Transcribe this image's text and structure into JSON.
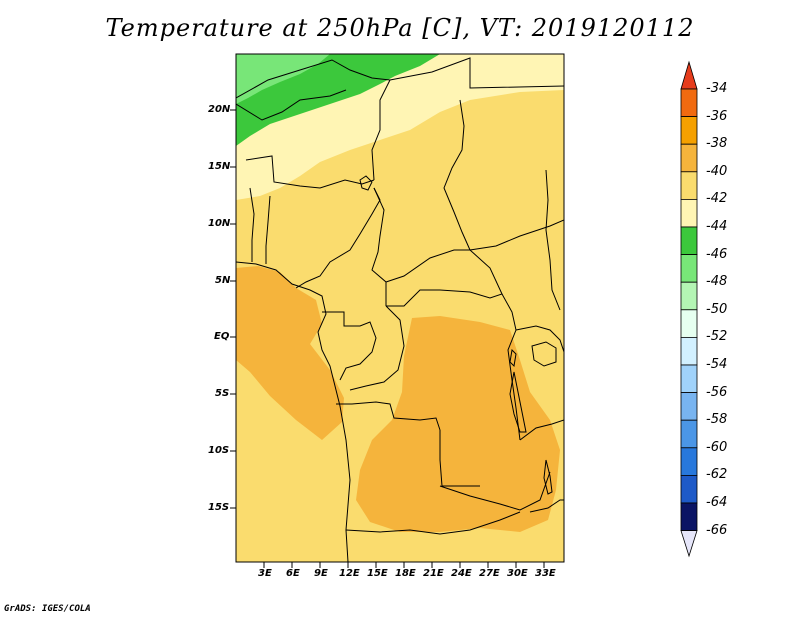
{
  "title": "Temperature at 250hPa [C], VT: 2019120112",
  "footer": "GrADS: IGES/COLA",
  "latitude_labels": [
    "20N",
    "15N",
    "10N",
    "5N",
    "EQ",
    "5S",
    "10S",
    "15S"
  ],
  "longitude_labels": [
    "3E",
    "6E",
    "9E",
    "12E",
    "15E",
    "18E",
    "21E",
    "24E",
    "27E",
    "30E",
    "33E"
  ],
  "colorbar": {
    "labels": [
      "-34",
      "-36",
      "-38",
      "-40",
      "-42",
      "-44",
      "-46",
      "-48",
      "-50",
      "-52",
      "-54",
      "-56",
      "-58",
      "-60",
      "-62",
      "-64",
      "-66"
    ],
    "colors": [
      "#e63c1c",
      "#f06a10",
      "#f5a000",
      "#f5b43c",
      "#fadc6e",
      "#fff5b4",
      "#3cc83c",
      "#78e678",
      "#b4f5b4",
      "#e6fff0",
      "#d2f0ff",
      "#a0d2fa",
      "#78b4f0",
      "#4b96e6",
      "#2878dc",
      "#1e5ac8",
      "#1432a0",
      "#0a1464",
      "#e6e6fa"
    ]
  },
  "map_colors": {
    "warm_orange": "#f5b43c",
    "light_orange": "#fadc6e",
    "pale_yellow": "#fff5b4",
    "green": "#3cc83c",
    "light_green": "#78e678",
    "boundary": "#000000"
  }
}
